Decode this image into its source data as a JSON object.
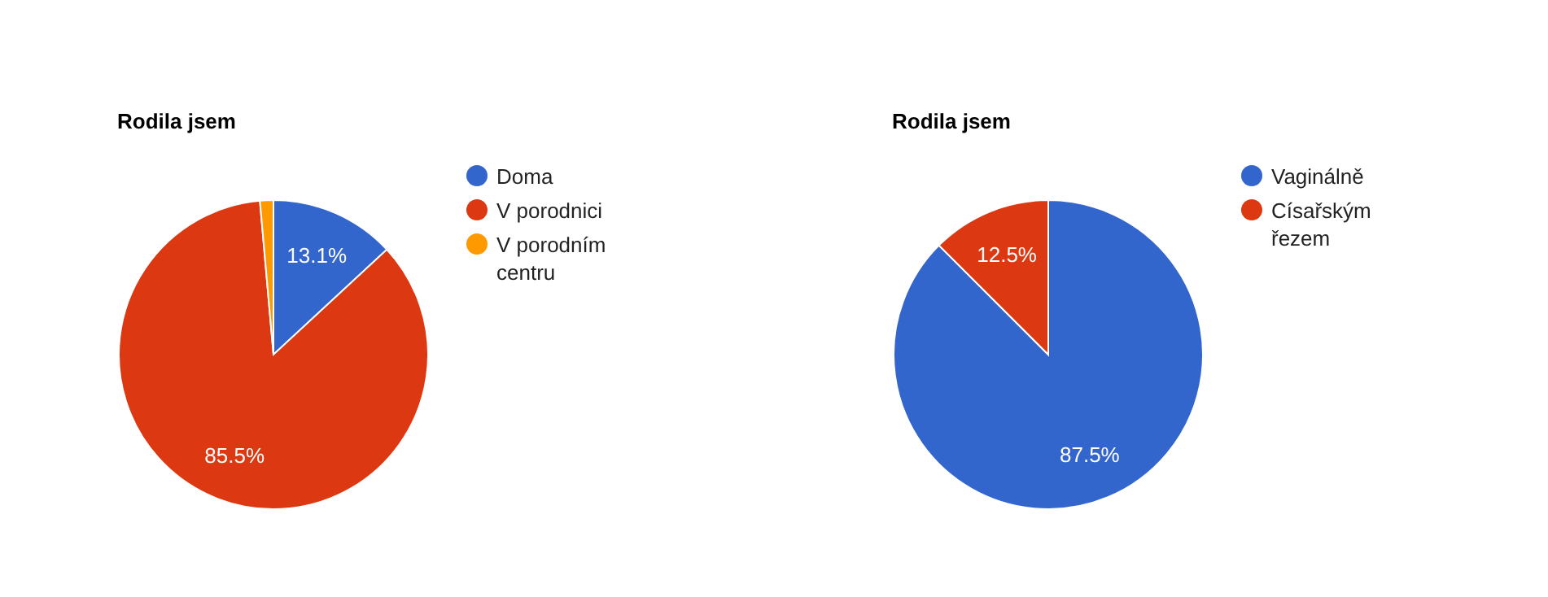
{
  "chart_data": [
    {
      "type": "pie",
      "title": "Rodila jsem",
      "categories": [
        "Doma",
        "V porodnici",
        "V porodním centru"
      ],
      "values": [
        13.1,
        85.5,
        1.4
      ],
      "colors": [
        "#3366cc",
        "#dc3912",
        "#ff9900"
      ],
      "value_labels": [
        "13.1%",
        "85.5%",
        null
      ],
      "legend": "right"
    },
    {
      "type": "pie",
      "title": "Rodila jsem",
      "categories": [
        "Vaginálně",
        "Císařským řezem"
      ],
      "values": [
        87.5,
        12.5
      ],
      "colors": [
        "#3366cc",
        "#dc3912"
      ],
      "value_labels": [
        "87.5%",
        "12.5%"
      ],
      "legend": "right"
    }
  ]
}
